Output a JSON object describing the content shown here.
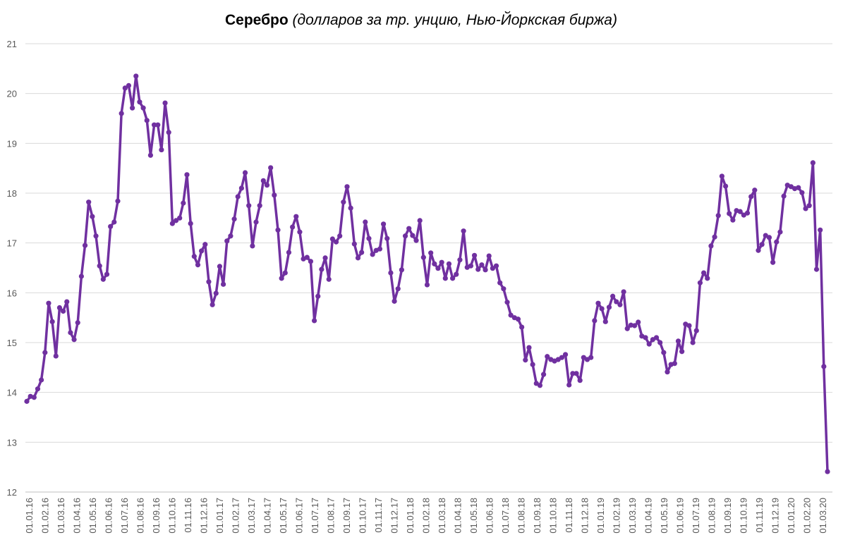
{
  "chart_data": {
    "type": "line",
    "title_main": "Серебро",
    "title_sub": " (долларов за тр. унцию, Нью-Йоркская биржа)",
    "xlabel": "",
    "ylabel": "",
    "ylim": [
      12,
      21
    ],
    "yticks": [
      "12",
      "13",
      "14",
      "15",
      "16",
      "17",
      "18",
      "19",
      "20",
      "21"
    ],
    "grid": true,
    "series_color": "#7030A0",
    "xticks": [
      "01.01.16",
      "01.02.16",
      "01.03.16",
      "01.04.16",
      "01.05.16",
      "01.06.16",
      "01.07.16",
      "01.08.16",
      "01.09.16",
      "01.10.16",
      "01.11.16",
      "01.12.16",
      "01.01.17",
      "01.02.17",
      "01.03.17",
      "01.04.17",
      "01.05.17",
      "01.06.17",
      "01.07.17",
      "01.08.17",
      "01.09.17",
      "01.10.17",
      "01.11.17",
      "01.12.17",
      "01.01.18",
      "01.02.18",
      "01.03.18",
      "01.04.18",
      "01.05.18",
      "01.06.18",
      "01.07.18",
      "01.08.18",
      "01.09.18",
      "01.10.18",
      "01.11.18",
      "01.12.18",
      "01.01.19",
      "01.02.19",
      "01.03.19",
      "01.04.19",
      "01.05.19",
      "01.06.19",
      "01.07.19",
      "01.08.19",
      "01.09.19",
      "01.10.19",
      "01.11.19",
      "01.12.19",
      "01.01.20",
      "01.02.20",
      "01.03.20"
    ],
    "series": [
      {
        "name": "Серебро",
        "values": [
          13.82,
          13.92,
          13.9,
          14.07,
          14.25,
          14.8,
          15.79,
          15.42,
          14.73,
          15.7,
          15.63,
          15.82,
          15.2,
          15.06,
          15.4,
          16.33,
          16.95,
          17.82,
          17.53,
          17.14,
          16.54,
          16.27,
          16.37,
          17.33,
          17.42,
          17.84,
          19.6,
          20.11,
          20.16,
          19.71,
          20.35,
          19.83,
          19.71,
          19.46,
          18.76,
          19.37,
          19.37,
          18.87,
          19.81,
          19.22,
          17.39,
          17.45,
          17.5,
          17.8,
          18.37,
          17.39,
          16.73,
          16.56,
          16.84,
          16.97,
          16.22,
          15.76,
          15.99,
          16.53,
          16.17,
          17.04,
          17.14,
          17.48,
          17.93,
          18.1,
          18.41,
          17.75,
          16.94,
          17.42,
          17.75,
          18.25,
          18.16,
          18.51,
          17.96,
          17.26,
          16.29,
          16.4,
          16.81,
          17.32,
          17.53,
          17.22,
          16.68,
          16.71,
          16.63,
          15.44,
          15.93,
          16.47,
          16.7,
          16.27,
          17.08,
          17.02,
          17.14,
          17.82,
          18.13,
          17.7,
          16.98,
          16.7,
          16.81,
          17.42,
          17.09,
          16.77,
          16.85,
          16.88,
          17.38,
          17.09,
          16.4,
          15.83,
          16.08,
          16.46,
          17.14,
          17.29,
          17.15,
          17.05,
          17.45,
          16.71,
          16.16,
          16.8,
          16.58,
          16.49,
          16.61,
          16.29,
          16.58,
          16.29,
          16.37,
          16.66,
          17.24,
          16.51,
          16.54,
          16.75,
          16.47,
          16.56,
          16.46,
          16.74,
          16.49,
          16.54,
          16.2,
          16.08,
          15.81,
          15.55,
          15.5,
          15.47,
          15.31,
          14.65,
          14.9,
          14.56,
          14.18,
          14.14,
          14.36,
          14.72,
          14.66,
          14.63,
          14.66,
          14.7,
          14.76,
          14.15,
          14.38,
          14.38,
          14.24,
          14.7,
          14.66,
          14.7,
          15.44,
          15.79,
          15.68,
          15.42,
          15.71,
          15.93,
          15.82,
          15.76,
          16.02,
          15.28,
          15.35,
          15.34,
          15.41,
          15.13,
          15.1,
          14.97,
          15.06,
          15.1,
          15.0,
          14.8,
          14.41,
          14.56,
          14.58,
          15.03,
          14.82,
          15.37,
          15.34,
          15.0,
          15.24,
          16.2,
          16.4,
          16.29,
          16.94,
          17.12,
          17.55,
          18.34,
          18.14,
          17.59,
          17.46,
          17.65,
          17.63,
          17.56,
          17.6,
          17.93,
          18.06,
          16.85,
          16.97,
          17.15,
          17.11,
          16.61,
          17.02,
          17.22,
          17.94,
          18.16,
          18.13,
          18.09,
          18.11,
          18.01,
          17.69,
          17.75,
          18.61,
          16.47,
          17.26,
          14.52,
          12.41
        ]
      }
    ]
  }
}
